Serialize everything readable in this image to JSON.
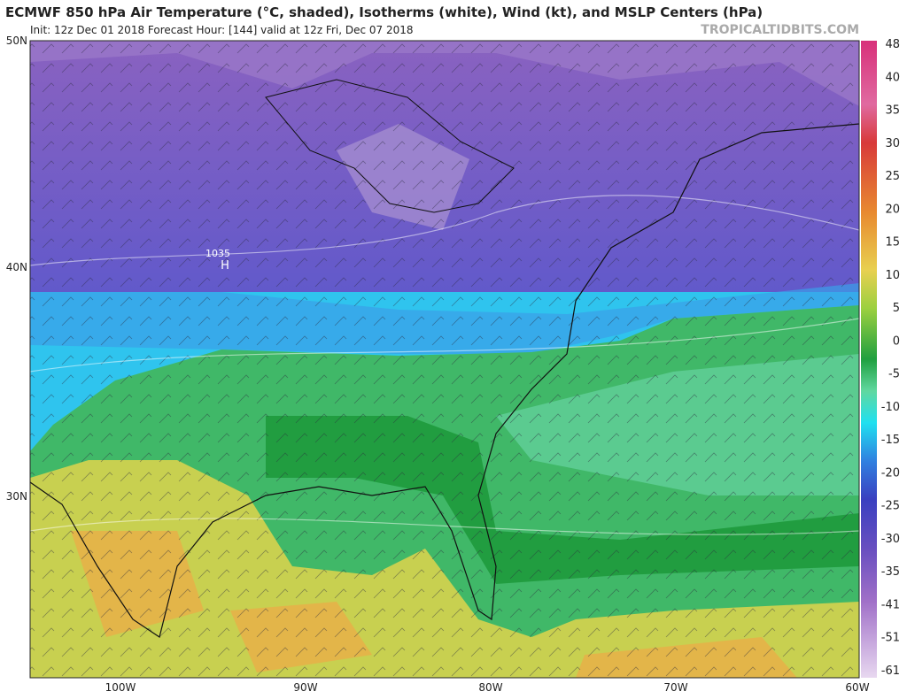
{
  "header": {
    "title": "ECMWF 850 hPa Air Temperature (°C, shaded), Isotherms (white), Wind (kt), and MSLP Centers (hPa)",
    "subtitle": "Init: 12z Dec 01 2018   Forecast Hour: [144]   valid at 12z Fri, Dec 07 2018",
    "watermark": "TROPICALTIDBITS.COM"
  },
  "map": {
    "lat_labels": [
      "50N",
      "40N",
      "30N"
    ],
    "lon_labels": [
      "100W",
      "90W",
      "80W",
      "70W",
      "60W"
    ],
    "pressure_center": {
      "value": "1035",
      "letter": "H"
    }
  },
  "colorbar": {
    "labels": [
      48,
      40,
      35,
      30,
      25,
      20,
      15,
      10,
      5,
      0,
      -5,
      -10,
      -15,
      -20,
      -25,
      -30,
      -35,
      -41,
      -51,
      -61
    ]
  }
}
